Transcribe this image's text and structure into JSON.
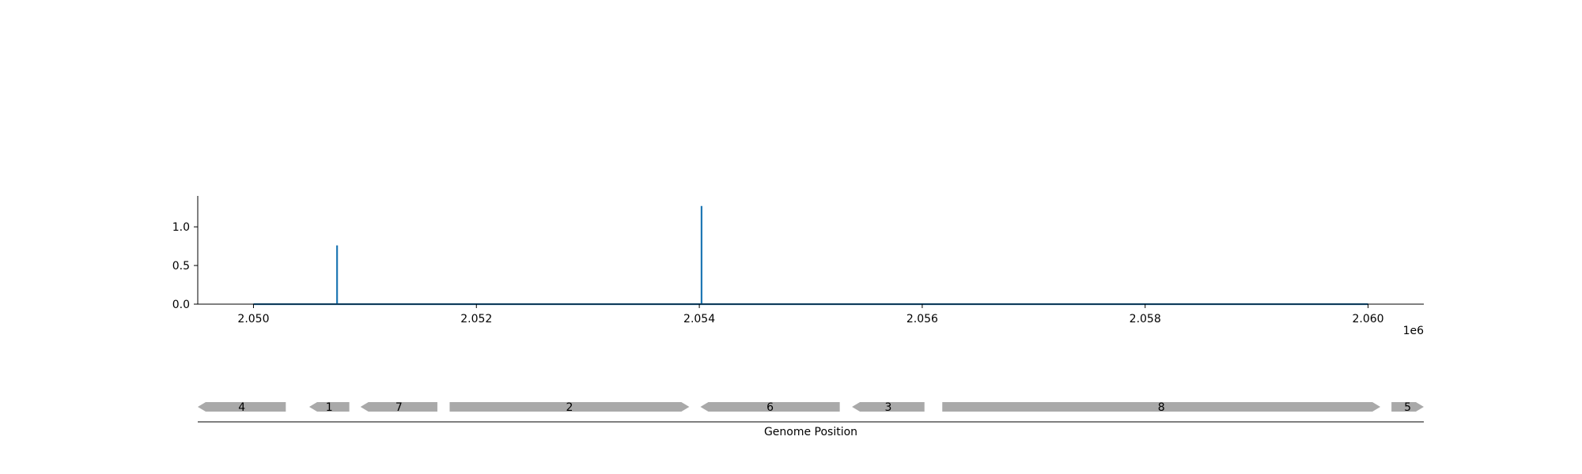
{
  "colors": {
    "line": "#1f77b4",
    "gene": "#a9a9a9",
    "axis": "#000000"
  },
  "chart_data": [
    {
      "type": "line",
      "title": "",
      "xlabel": "",
      "ylabel": "",
      "x_offset_label": "1e6",
      "xlim": [
        2.0495,
        2.0605
      ],
      "ylim": [
        0.0,
        1.4
      ],
      "xticks": [
        2.05,
        2.052,
        2.054,
        2.056,
        2.058,
        2.06
      ],
      "xtick_labels": [
        "2.050",
        "2.052",
        "2.054",
        "2.056",
        "2.058",
        "2.060"
      ],
      "yticks": [
        0.0,
        0.5,
        1.0
      ],
      "ytick_labels": [
        "0.0",
        "0.5",
        "1.0"
      ],
      "grid": false,
      "series": [
        {
          "x": [
            2.05,
            2.05075,
            2.05075,
            2.05075,
            2.05402,
            2.05402,
            2.05402,
            2.06
          ],
          "y": [
            0.0,
            0.0,
            0.76,
            0.0,
            0.0,
            1.27,
            0.0,
            0.0
          ]
        }
      ]
    },
    {
      "type": "gene_track",
      "xlabel": "Genome Position",
      "xlim": [
        2.0495,
        2.0605
      ],
      "genes": [
        {
          "label": "4",
          "start": 2.0495,
          "end": 2.05029,
          "strand": "-"
        },
        {
          "label": "1",
          "start": 2.0505,
          "end": 2.05086,
          "strand": "-"
        },
        {
          "label": "7",
          "start": 2.05096,
          "end": 2.05165,
          "strand": "-"
        },
        {
          "label": "2",
          "start": 2.05176,
          "end": 2.05391,
          "strand": "+"
        },
        {
          "label": "6",
          "start": 2.05401,
          "end": 2.05526,
          "strand": "-"
        },
        {
          "label": "3",
          "start": 2.05537,
          "end": 2.05602,
          "strand": "-"
        },
        {
          "label": "8",
          "start": 2.05618,
          "end": 2.06011,
          "strand": "+"
        },
        {
          "label": "5",
          "start": 2.06021,
          "end": 2.0605,
          "strand": "+"
        }
      ]
    }
  ]
}
